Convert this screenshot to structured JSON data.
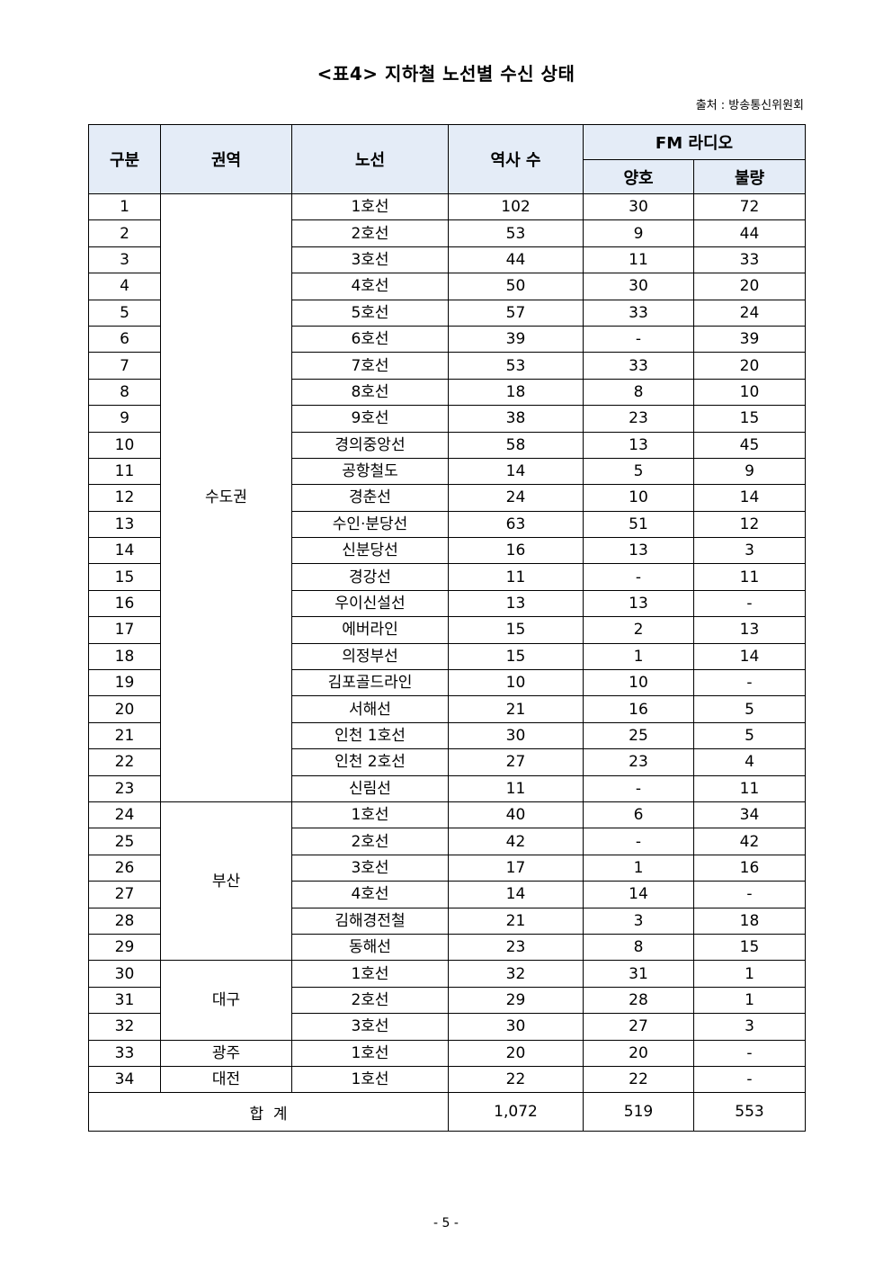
{
  "title": "<표4> 지하철 노선별 수신 상태",
  "source": "출처 : 방송통신위원회",
  "headers": {
    "no": "구분",
    "region": "권역",
    "line": "노선",
    "stations": "역사 수",
    "fm": "FM 라디오",
    "good": "양호",
    "bad": "불량"
  },
  "regions": [
    {
      "name": "수도권",
      "rows": [
        [
          "1",
          "1호선",
          "102",
          "30",
          "72"
        ],
        [
          "2",
          "2호선",
          "53",
          "9",
          "44"
        ],
        [
          "3",
          "3호선",
          "44",
          "11",
          "33"
        ],
        [
          "4",
          "4호선",
          "50",
          "30",
          "20"
        ],
        [
          "5",
          "5호선",
          "57",
          "33",
          "24"
        ],
        [
          "6",
          "6호선",
          "39",
          "-",
          "39"
        ],
        [
          "7",
          "7호선",
          "53",
          "33",
          "20"
        ],
        [
          "8",
          "8호선",
          "18",
          "8",
          "10"
        ],
        [
          "9",
          "9호선",
          "38",
          "23",
          "15"
        ],
        [
          "10",
          "경의중앙선",
          "58",
          "13",
          "45"
        ],
        [
          "11",
          "공항철도",
          "14",
          "5",
          "9"
        ],
        [
          "12",
          "경춘선",
          "24",
          "10",
          "14"
        ],
        [
          "13",
          "수인·분당선",
          "63",
          "51",
          "12"
        ],
        [
          "14",
          "신분당선",
          "16",
          "13",
          "3"
        ],
        [
          "15",
          "경강선",
          "11",
          "-",
          "11"
        ],
        [
          "16",
          "우이신설선",
          "13",
          "13",
          "-"
        ],
        [
          "17",
          "에버라인",
          "15",
          "2",
          "13"
        ],
        [
          "18",
          "의정부선",
          "15",
          "1",
          "14"
        ],
        [
          "19",
          "김포골드라인",
          "10",
          "10",
          "-"
        ],
        [
          "20",
          "서해선",
          "21",
          "16",
          "5"
        ],
        [
          "21",
          "인천 1호선",
          "30",
          "25",
          "5"
        ],
        [
          "22",
          "인천 2호선",
          "27",
          "23",
          "4"
        ],
        [
          "23",
          "신림선",
          "11",
          "-",
          "11"
        ]
      ]
    },
    {
      "name": "부산",
      "rows": [
        [
          "24",
          "1호선",
          "40",
          "6",
          "34"
        ],
        [
          "25",
          "2호선",
          "42",
          "-",
          "42"
        ],
        [
          "26",
          "3호선",
          "17",
          "1",
          "16"
        ],
        [
          "27",
          "4호선",
          "14",
          "14",
          "-"
        ],
        [
          "28",
          "김해경전철",
          "21",
          "3",
          "18"
        ],
        [
          "29",
          "동해선",
          "23",
          "8",
          "15"
        ]
      ]
    },
    {
      "name": "대구",
      "rows": [
        [
          "30",
          "1호선",
          "32",
          "31",
          "1"
        ],
        [
          "31",
          "2호선",
          "29",
          "28",
          "1"
        ],
        [
          "32",
          "3호선",
          "30",
          "27",
          "3"
        ]
      ]
    },
    {
      "name": "광주",
      "rows": [
        [
          "33",
          "1호선",
          "20",
          "20",
          "-"
        ]
      ]
    },
    {
      "name": "대전",
      "rows": [
        [
          "34",
          "1호선",
          "22",
          "22",
          "-"
        ]
      ]
    }
  ],
  "total": {
    "label": "합  계",
    "stations": "1,072",
    "good": "519",
    "bad": "553"
  },
  "page_number": "- 5 -"
}
